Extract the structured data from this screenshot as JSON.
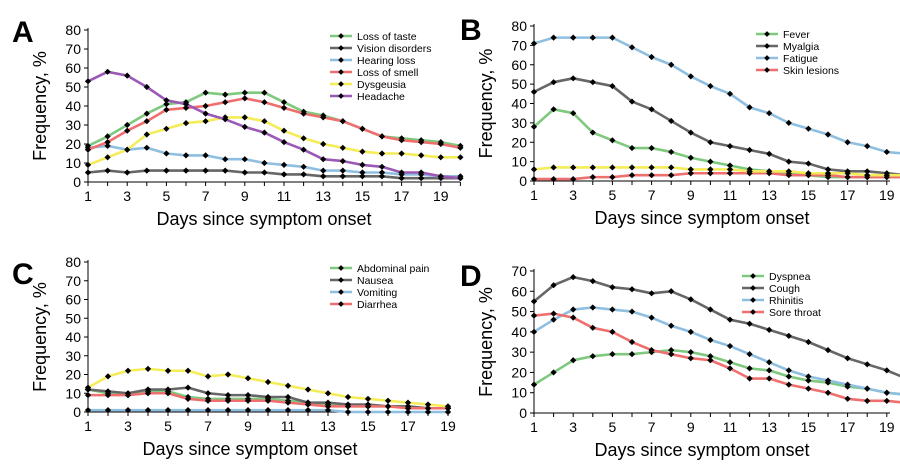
{
  "figure": {
    "common": {
      "xlabel": "Days since symptom onset",
      "ylabel": "Frequency, %",
      "ylim": [
        0,
        80
      ],
      "yticks": [
        0,
        10,
        20,
        30,
        40,
        50,
        60,
        70,
        80
      ],
      "xticks": [
        1,
        3,
        5,
        7,
        9,
        11,
        13,
        15,
        17,
        19
      ]
    },
    "chart_data": [
      {
        "type": "line",
        "panel_letter": "A",
        "xlabel": "Days since symptom onset",
        "ylabel": "Frequency, %",
        "xlim": [
          1,
          20
        ],
        "ylim": [
          0,
          80
        ],
        "x": [
          1,
          2,
          3,
          4,
          5,
          6,
          7,
          8,
          9,
          10,
          11,
          12,
          13,
          14,
          15,
          16,
          17,
          18,
          19,
          20
        ],
        "legend_position": "top-right",
        "series": [
          {
            "name": "Loss of taste",
            "color": "#7fc97f",
            "values": [
              19,
              24,
              30,
              36,
              41,
              42,
              47,
              46,
              47,
              47,
              42,
              37,
              35,
              32,
              28,
              24,
              23,
              22,
              21,
              19
            ]
          },
          {
            "name": "Vision disorders",
            "color": "#666666",
            "values": [
              5,
              6,
              5,
              6,
              6,
              6,
              6,
              6,
              5,
              5,
              4,
              4,
              3,
              3,
              3,
              3,
              2,
              2,
              2,
              2
            ]
          },
          {
            "name": "Hearing loss",
            "color": "#8fbfe0",
            "values": [
              18,
              19,
              17,
              18,
              15,
              14,
              14,
              12,
              12,
              10,
              9,
              8,
              6,
              6,
              5,
              5,
              4,
              4,
              3,
              3
            ]
          },
          {
            "name": "Loss of smell",
            "color": "#ef6f6f",
            "values": [
              17,
              21,
              27,
              32,
              38,
              39,
              40,
              42,
              44,
              42,
              39,
              36,
              34,
              32,
              28,
              24,
              22,
              21,
              20,
              18
            ]
          },
          {
            "name": "Dysgeusia",
            "color": "#f4ec58",
            "values": [
              9,
              13,
              17,
              25,
              28,
              31,
              32,
              34,
              34,
              32,
              27,
              23,
              20,
              18,
              16,
              15,
              15,
              14,
              13,
              13
            ]
          },
          {
            "name": "Headache",
            "color": "#9b59b6",
            "values": [
              53,
              58,
              56,
              50,
              43,
              41,
              36,
              33,
              29,
              26,
              21,
              17,
              12,
              11,
              9,
              8,
              5,
              5,
              3,
              2
            ]
          }
        ]
      },
      {
        "type": "line",
        "panel_letter": "B",
        "xlabel": "Days since symptom onset",
        "ylabel": "Frequency, %",
        "xlim": [
          1,
          20
        ],
        "ylim": [
          0,
          80
        ],
        "x": [
          1,
          2,
          3,
          4,
          5,
          6,
          7,
          8,
          9,
          10,
          11,
          12,
          13,
          14,
          15,
          16,
          17,
          18,
          19,
          20
        ],
        "legend_position": "top-right",
        "series": [
          {
            "name": "Fever",
            "color": "#7fc97f",
            "values": [
              28,
              37,
              35,
              25,
              21,
              17,
              17,
              15,
              12,
              10,
              8,
              6,
              5,
              4,
              3,
              2,
              2,
              2,
              2,
              2
            ]
          },
          {
            "name": "Myalgia",
            "color": "#666666",
            "values": [
              46,
              51,
              53,
              51,
              49,
              41,
              37,
              31,
              25,
              20,
              18,
              16,
              14,
              10,
              9,
              6,
              5,
              5,
              4,
              3
            ]
          },
          {
            "name": "Fatigue",
            "color": "#8fbfe0",
            "values": [
              71,
              74,
              74,
              74,
              74,
              69,
              64,
              60,
              54,
              49,
              45,
              38,
              35,
              30,
              27,
              24,
              20,
              18,
              15,
              14
            ]
          },
          {
            "name": "Skin lesions",
            "color": "#ef6f6f",
            "values": [
              1,
              1,
              1,
              2,
              2,
              3,
              3,
              3,
              4,
              4,
              4,
              4,
              4,
              3,
              3,
              3,
              2,
              2,
              2,
              2
            ]
          },
          {
            "name": "",
            "color": "#f4ec58",
            "values": [
              6,
              7,
              7,
              7,
              7,
              7,
              7,
              7,
              6,
              6,
              6,
              5,
              5,
              5,
              4,
              4,
              4,
              3,
              3,
              3
            ]
          }
        ]
      },
      {
        "type": "line",
        "panel_letter": "C",
        "xlabel": "Days since symptom onset",
        "ylabel": "Frequency, %",
        "xlim": [
          1,
          19
        ],
        "ylim": [
          0,
          80
        ],
        "x": [
          1,
          2,
          3,
          4,
          5,
          6,
          7,
          8,
          9,
          10,
          11,
          12,
          13,
          14,
          15,
          16,
          17,
          18,
          19
        ],
        "legend_position": "top-right",
        "series": [
          {
            "name": "Abdominal pain",
            "color": "#7fc97f",
            "values": [
              12,
              10,
              9,
              11,
              11,
              8,
              7,
              7,
              7,
              7,
              6,
              5,
              4,
              3,
              3,
              3,
              3,
              2,
              2
            ]
          },
          {
            "name": "Nausea",
            "color": "#666666",
            "values": [
              12,
              11,
              10,
              12,
              12,
              13,
              10,
              9,
              9,
              8,
              8,
              5,
              5,
              4,
              4,
              3,
              3,
              2,
              2
            ]
          },
          {
            "name": "Vomiting",
            "color": "#8fbfe0",
            "values": [
              1,
              1,
              1,
              1,
              1,
              1,
              1,
              1,
              1,
              1,
              1,
              1,
              1,
              0,
              0,
              0,
              0,
              0,
              0
            ]
          },
          {
            "name": "Diarrhea",
            "color": "#ef6f6f",
            "values": [
              9,
              9,
              9,
              10,
              10,
              7,
              6,
              6,
              6,
              6,
              5,
              4,
              3,
              3,
              3,
              3,
              2,
              2,
              2
            ]
          },
          {
            "name": "",
            "color": "#f4ec58",
            "values": [
              13,
              19,
              22,
              23,
              22,
              22,
              19,
              20,
              18,
              16,
              14,
              12,
              10,
              8,
              7,
              6,
              5,
              4,
              3
            ]
          }
        ]
      },
      {
        "type": "line",
        "panel_letter": "D",
        "xlabel": "Days since symptom onset",
        "ylabel": "Frequency, %",
        "xlim": [
          1,
          20
        ],
        "ylim": [
          0,
          70
        ],
        "yticks": [
          0,
          10,
          20,
          30,
          40,
          50,
          60,
          70
        ],
        "x": [
          1,
          2,
          3,
          4,
          5,
          6,
          7,
          8,
          9,
          10,
          11,
          12,
          13,
          14,
          15,
          16,
          17,
          18,
          19,
          20
        ],
        "legend_position": "top-right",
        "series": [
          {
            "name": "Dyspnea",
            "color": "#7fc97f",
            "values": [
              14,
              20,
              26,
              28,
              29,
              29,
              30,
              31,
              30,
              28,
              25,
              22,
              21,
              18,
              16,
              15,
              13,
              12,
              10,
              9
            ]
          },
          {
            "name": "Cough",
            "color": "#666666",
            "values": [
              55,
              63,
              67,
              65,
              62,
              61,
              59,
              60,
              56,
              51,
              46,
              44,
              41,
              38,
              35,
              31,
              27,
              24,
              21,
              17
            ]
          },
          {
            "name": "Rhinitis",
            "color": "#8fbfe0",
            "values": [
              40,
              46,
              51,
              52,
              51,
              50,
              47,
              43,
              40,
              36,
              33,
              29,
              25,
              21,
              18,
              16,
              14,
              12,
              10,
              9
            ]
          },
          {
            "name": "Sore throat",
            "color": "#ef6f6f",
            "values": [
              48,
              49,
              47,
              42,
              40,
              35,
              31,
              29,
              27,
              26,
              22,
              17,
              17,
              14,
              12,
              10,
              7,
              6,
              6,
              5
            ]
          }
        ]
      }
    ]
  }
}
